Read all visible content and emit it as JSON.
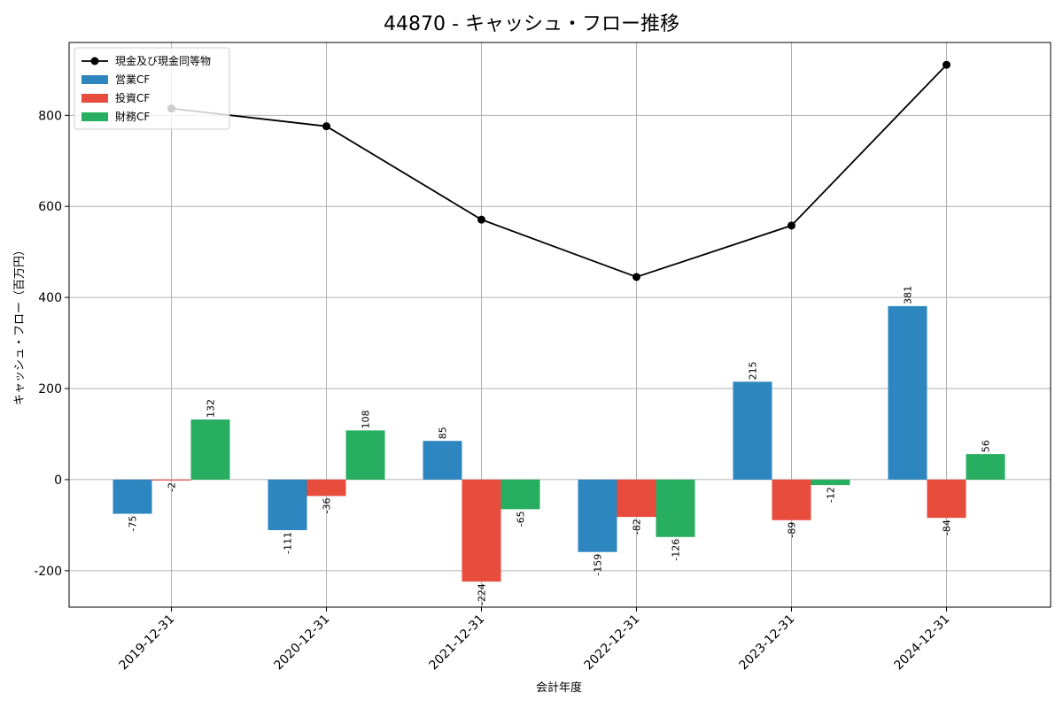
{
  "chart_data": {
    "type": "bar",
    "title": "44870 - キャッシュ・フロー推移",
    "xlabel": "会計年度",
    "ylabel": "キャッシュ・フロー（百万円）",
    "categories": [
      "2019-12-31",
      "2020-12-31",
      "2021-12-31",
      "2022-12-31",
      "2023-12-31",
      "2024-12-31"
    ],
    "ylim": [
      -280,
      960
    ],
    "yticks": [
      -200,
      0,
      200,
      400,
      600,
      800
    ],
    "grid": true,
    "legend_position": "top-left",
    "series": [
      {
        "name": "営業CF",
        "kind": "bar",
        "color": "#2e86c1",
        "values": [
          -75,
          -111,
          85,
          -159,
          215,
          381
        ]
      },
      {
        "name": "投資CF",
        "kind": "bar",
        "color": "#e74c3c",
        "values": [
          -2,
          -36,
          -224,
          -82,
          -89,
          -84
        ]
      },
      {
        "name": "財務CF",
        "kind": "bar",
        "color": "#27ae60",
        "values": [
          132,
          108,
          -65,
          -126,
          -12,
          56
        ]
      },
      {
        "name": "現金及び現金同等物",
        "kind": "line",
        "color": "#000000",
        "values": [
          815,
          776,
          571,
          445,
          558,
          911
        ]
      }
    ]
  }
}
